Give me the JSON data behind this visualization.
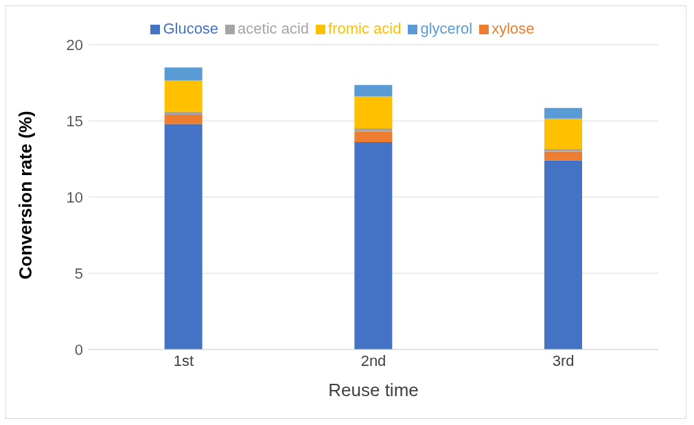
{
  "chart_data": {
    "type": "bar",
    "stacked": true,
    "xlabel": "Reuse time",
    "ylabel": "Conversion rate (%)",
    "categories": [
      "1st",
      "2nd",
      "3rd"
    ],
    "series": [
      {
        "name": "Glucose",
        "color": "#4472c4",
        "values": [
          14.8,
          13.6,
          12.4
        ]
      },
      {
        "name": "xylose",
        "color": "#ed7d31",
        "values": [
          0.6,
          0.7,
          0.6
        ]
      },
      {
        "name": "acetic acid",
        "color": "#a5a5a5",
        "values": [
          0.2,
          0.2,
          0.15
        ]
      },
      {
        "name": "fromic acid",
        "color": "#ffc000",
        "values": [
          2.05,
          2.1,
          2.0
        ]
      },
      {
        "name": "glycerol",
        "color": "#5b9bd5",
        "values": [
          0.85,
          0.75,
          0.7
        ]
      }
    ],
    "ylim": [
      0,
      20
    ],
    "yticks": [
      0,
      5,
      10,
      15,
      20
    ],
    "grid": "y",
    "legend": "top"
  }
}
